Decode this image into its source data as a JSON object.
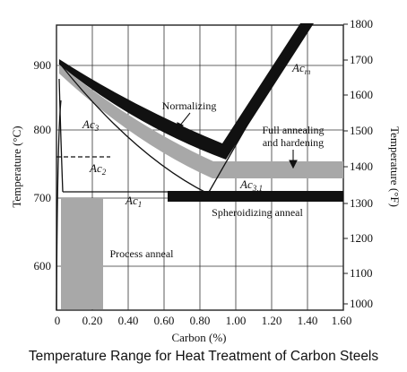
{
  "caption": "Temperature Range for Heat Treatment of Carbon Steels",
  "axes": {
    "x_title": "Carbon (%)",
    "y_left_title": "Temperature (°C)",
    "y_right_title": "Temperature (°F)",
    "x_ticks": [
      "0",
      "0.20",
      "0.40",
      "0.60",
      "0.80",
      "1.00",
      "1.20",
      "1.40",
      "1.60"
    ],
    "y_left_ticks": [
      "600",
      "700",
      "800",
      "900"
    ],
    "y_right_ticks": [
      "1000",
      "1100",
      "1200",
      "1300",
      "1400",
      "1500",
      "1600",
      "1700",
      "1800"
    ],
    "x_range": [
      0,
      1.6
    ],
    "y_range_c": [
      528,
      990
    ]
  },
  "regions": {
    "normalizing": "Normalizing",
    "full_annealing_line1": "Full annealing",
    "full_annealing_line2": "and hardening",
    "spheroidizing": "Spheroidizing anneal",
    "process_anneal": "Process anneal"
  },
  "lines": {
    "ac3": {
      "main": "Ac",
      "sub": "3"
    },
    "ac2": {
      "main": "Ac",
      "sub": "2"
    },
    "ac1": {
      "main": "Ac",
      "sub": "1"
    },
    "acm": {
      "main": "Ac",
      "sub": "m"
    },
    "ac31": {
      "main": "Ac",
      "sub": "3,1"
    }
  },
  "colors": {
    "dark_band": "#111111",
    "gray_band": "#a8a8a8",
    "grid": "#333333"
  }
}
